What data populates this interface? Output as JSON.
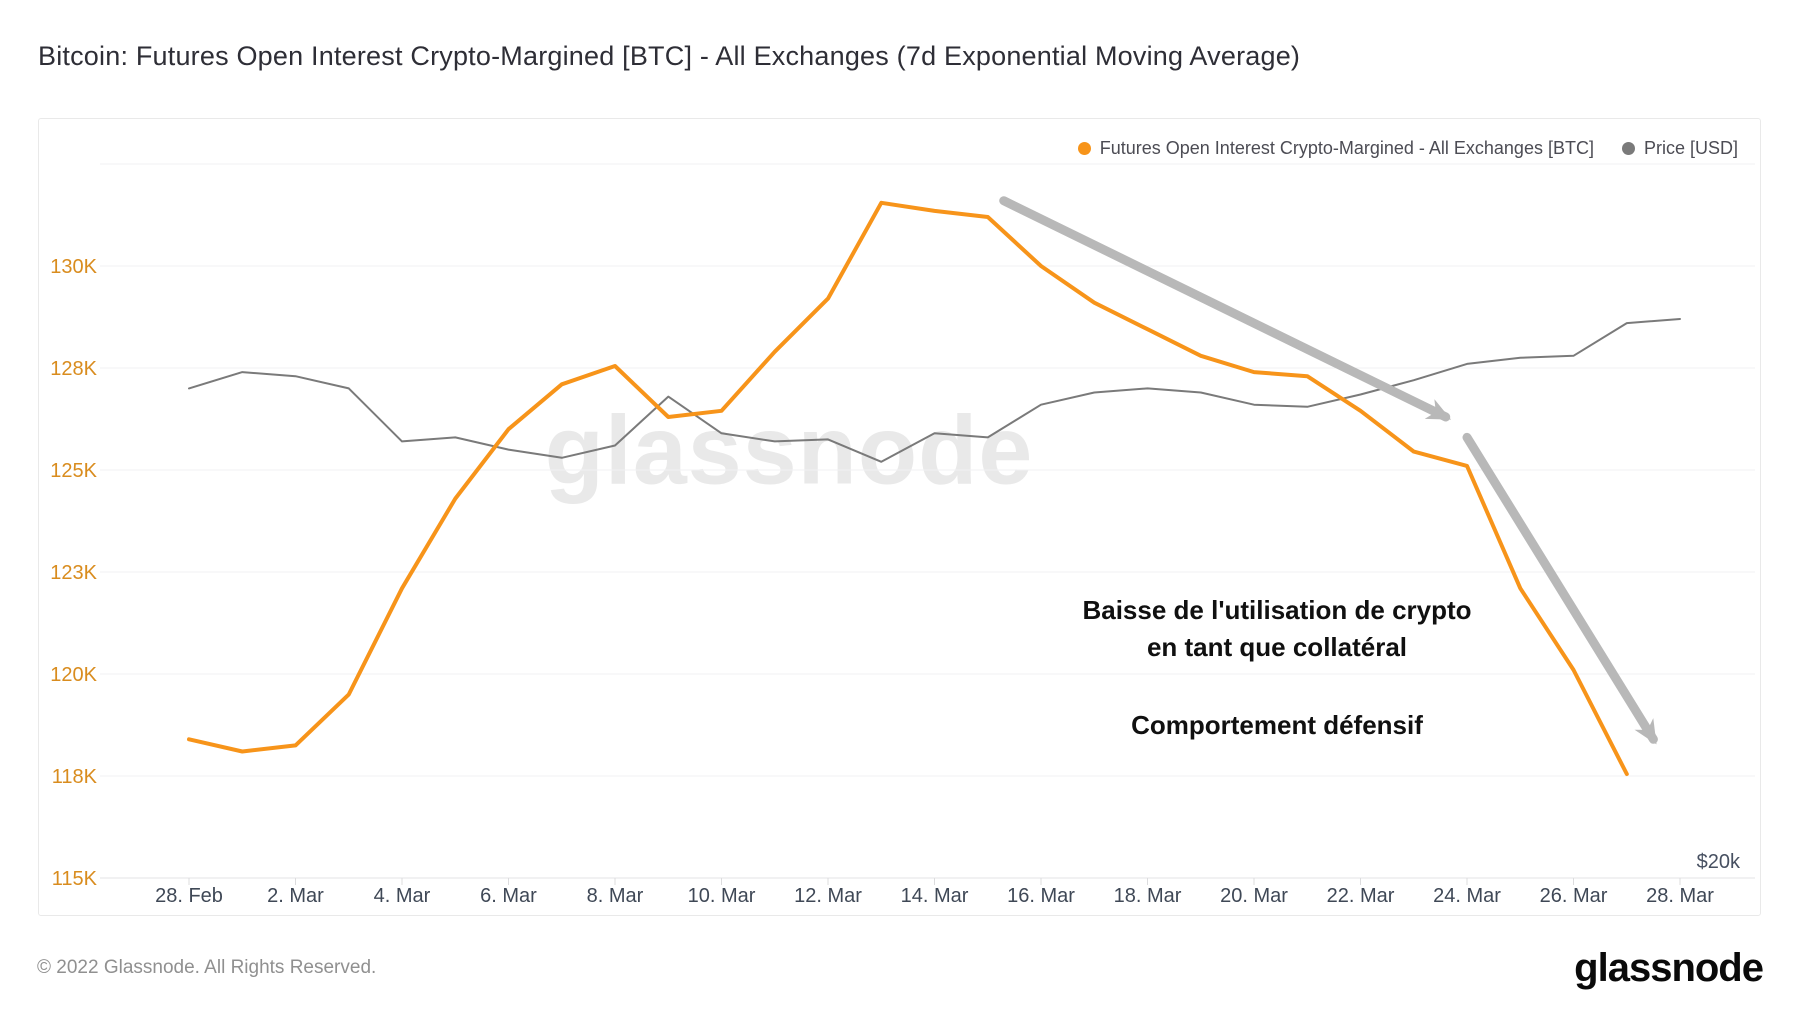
{
  "page": {
    "title": "Bitcoin: Futures Open Interest Crypto-Margined [BTC] - All Exchanges (7d Exponential Moving Average)"
  },
  "legend": {
    "items": [
      {
        "label": "Futures Open Interest Crypto-Margined - All Exchanges [BTC]",
        "color": "#f7941a"
      },
      {
        "label": "Price [USD]",
        "color": "#7a7a7a"
      }
    ]
  },
  "watermark": "glassnode",
  "annotations": {
    "callout_line1": "Baisse de l'utilisation de crypto",
    "callout_line2": "en tant que collatéral",
    "callout_line3": "Comportement défensif"
  },
  "footer": {
    "copyright": "© 2022 Glassnode. All Rights Reserved.",
    "brand": "glassnode"
  },
  "chart_data": {
    "type": "line",
    "title": "Bitcoin: Futures Open Interest Crypto-Margined [BTC] - All Exchanges (7d Exponential Moving Average)",
    "grid": "horizontal",
    "legend_position": "top-right",
    "x_tick_labels": [
      "28. Feb",
      "2. Mar",
      "4. Mar",
      "6. Mar",
      "8. Mar",
      "10. Mar",
      "12. Mar",
      "14. Mar",
      "16. Mar",
      "18. Mar",
      "20. Mar",
      "22. Mar",
      "24. Mar",
      "26. Mar",
      "28. Mar"
    ],
    "y_tick_labels": [
      "130K",
      "128K",
      "125K",
      "123K",
      "120K",
      "118K",
      "115K"
    ],
    "y_axis": {
      "side": "left",
      "unit": "BTC",
      "min": 115,
      "max": 132.5,
      "tick_step": 2.5,
      "note": "tick labels rounded to whole K"
    },
    "right_axis": {
      "only_visible_label": "$20k"
    },
    "x": [
      "Feb 28",
      "Mar 1",
      "Mar 2",
      "Mar 3",
      "Mar 4",
      "Mar 5",
      "Mar 6",
      "Mar 7",
      "Mar 8",
      "Mar 9",
      "Mar 10",
      "Mar 11",
      "Mar 12",
      "Mar 13",
      "Mar 14",
      "Mar 15",
      "Mar 16",
      "Mar 17",
      "Mar 18",
      "Mar 19",
      "Mar 20",
      "Mar 21",
      "Mar 22",
      "Mar 23",
      "Mar 24",
      "Mar 25",
      "Mar 26",
      "Mar 27",
      "Mar 28"
    ],
    "series": [
      {
        "name": "Futures Open Interest Crypto-Margined - All Exchanges [BTC]",
        "color": "#f7941a",
        "width": 4,
        "axis": "left",
        "unit": "thousand BTC",
        "values": [
          118.4,
          118.1,
          118.25,
          119.5,
          122.1,
          124.3,
          126.0,
          127.1,
          127.55,
          126.3,
          126.45,
          127.9,
          129.2,
          131.55,
          131.35,
          131.2,
          130.0,
          129.1,
          128.45,
          127.8,
          127.4,
          127.3,
          126.45,
          125.45,
          125.1,
          122.1,
          120.1,
          117.55,
          null
        ]
      },
      {
        "name": "Price [USD]",
        "color": "#7a7a7a",
        "width": 2,
        "axis": "right",
        "note": "right price axis is unlabeled except the $20k mark; values are given on the left-axis visual scale used for plotting",
        "values": [
          127.0,
          127.4,
          127.3,
          127.0,
          125.7,
          125.8,
          125.5,
          125.3,
          125.6,
          126.8,
          125.9,
          125.7,
          125.75,
          125.2,
          125.9,
          125.8,
          126.6,
          126.9,
          127.0,
          126.9,
          126.6,
          126.55,
          126.85,
          127.2,
          127.6,
          127.75,
          127.8,
          128.6,
          128.7
        ]
      }
    ],
    "arrows": [
      {
        "from": {
          "day": 15.3,
          "value": 131.6
        },
        "to": {
          "day": 23.6,
          "value": 126.3
        }
      },
      {
        "from": {
          "day": 24.0,
          "value": 125.8
        },
        "to": {
          "day": 27.5,
          "value": 118.4
        }
      }
    ],
    "arrow_color": "#b8b8b8"
  }
}
